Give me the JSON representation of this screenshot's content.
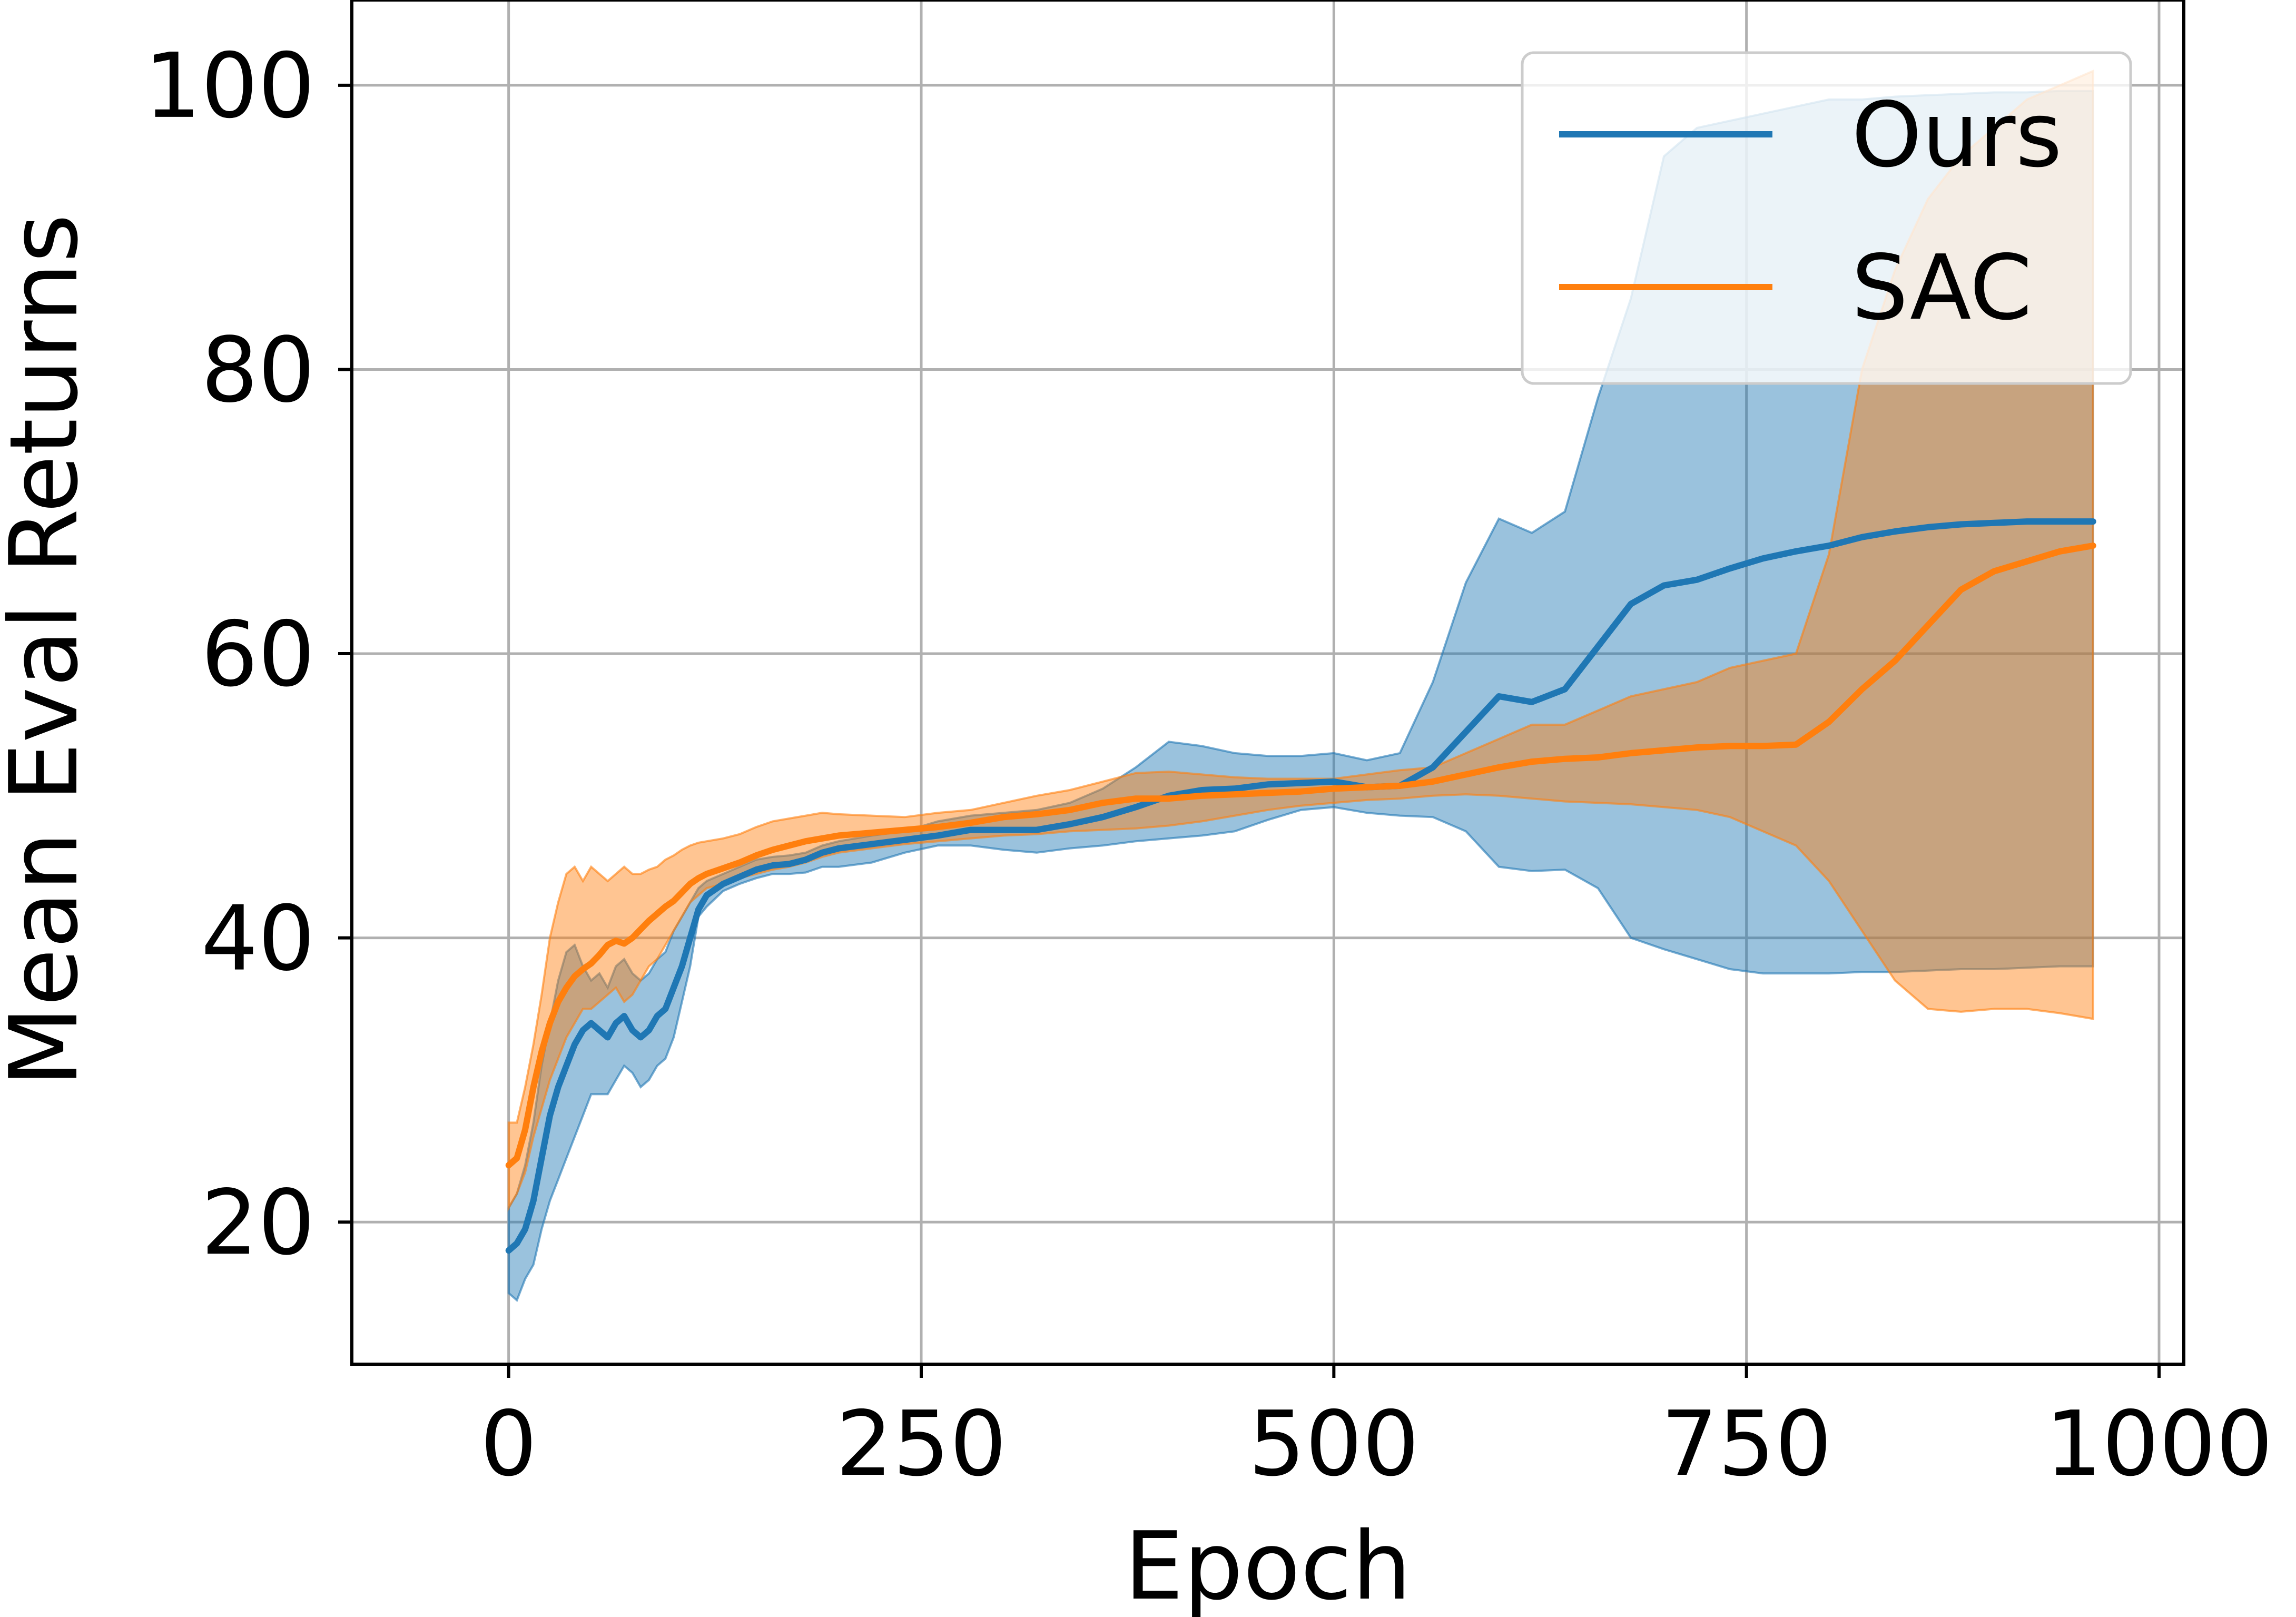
{
  "chart_data": {
    "type": "line",
    "title": "",
    "xlabel": "Epoch",
    "ylabel": "Mean Eval Returns",
    "xlim": [
      -95,
      1015
    ],
    "ylim": [
      10,
      106
    ],
    "xticks": [
      0,
      250,
      500,
      750,
      1000
    ],
    "xtick_labels": [
      "0",
      "250",
      "500",
      "750",
      "1000"
    ],
    "yticks": [
      20,
      40,
      60,
      80,
      100
    ],
    "ytick_labels": [
      "20",
      "40",
      "60",
      "80",
      "100"
    ],
    "grid": true,
    "legend_position": "top-right",
    "series": [
      {
        "name": "Ours",
        "color": "#1f77b4",
        "x": [
          0,
          5,
          10,
          15,
          20,
          25,
          30,
          35,
          40,
          45,
          50,
          55,
          60,
          65,
          70,
          75,
          80,
          85,
          90,
          95,
          100,
          105,
          110,
          115,
          120,
          130,
          140,
          150,
          160,
          170,
          180,
          190,
          200,
          220,
          240,
          260,
          280,
          300,
          320,
          340,
          360,
          380,
          400,
          420,
          440,
          460,
          480,
          500,
          520,
          540,
          560,
          580,
          600,
          620,
          640,
          660,
          680,
          700,
          720,
          740,
          760,
          780,
          800,
          820,
          840,
          860,
          880,
          900,
          920,
          940,
          960
        ],
        "y": [
          18,
          18.5,
          19.5,
          21.5,
          24.5,
          27.5,
          29.5,
          31,
          32.5,
          33.5,
          34,
          33.5,
          33,
          34,
          34.5,
          33.5,
          33,
          33.5,
          34.5,
          35,
          36.5,
          38,
          40,
          42,
          43,
          43.8,
          44.3,
          44.8,
          45.1,
          45.2,
          45.5,
          46,
          46.3,
          46.6,
          46.9,
          47.2,
          47.6,
          47.6,
          47.6,
          48,
          48.5,
          49.2,
          50,
          50.4,
          50.5,
          50.8,
          50.9,
          51,
          50.6,
          50.7,
          52,
          54.5,
          57,
          56.6,
          57.5,
          60.5,
          63.5,
          64.8,
          65.2,
          66,
          66.7,
          67.2,
          67.6,
          68.2,
          68.6,
          68.9,
          69.1,
          69.2,
          69.3,
          69.3,
          69.3
        ],
        "band_upper": [
          21,
          22,
          24,
          27,
          31,
          34,
          37,
          39,
          39.5,
          38,
          37,
          37.5,
          36.5,
          38,
          38.5,
          37.5,
          37,
          37.5,
          38.5,
          39,
          40.5,
          41.5,
          42.5,
          43.5,
          44,
          44.5,
          45,
          45.5,
          45.7,
          45.8,
          46,
          46.5,
          46.8,
          47.2,
          47.5,
          48.2,
          48.6,
          48.8,
          49,
          49.5,
          50.5,
          52,
          53.8,
          53.5,
          53,
          52.8,
          52.8,
          53,
          52.5,
          53,
          58,
          65,
          69.5,
          68.5,
          70,
          78,
          85,
          95,
          97,
          97.5,
          98,
          98.5,
          99,
          99,
          99.2,
          99.3,
          99.4,
          99.5,
          99.5,
          99.6,
          99.6
        ],
        "band_lower": [
          15,
          14.5,
          16,
          17,
          19.5,
          21.5,
          23,
          24.5,
          26,
          27.5,
          29,
          29,
          29,
          30,
          31,
          30.5,
          29.5,
          30,
          31,
          31.5,
          33,
          35.5,
          38,
          41.5,
          42.2,
          43.3,
          43.8,
          44.2,
          44.5,
          44.5,
          44.6,
          45,
          45,
          45.3,
          46,
          46.5,
          46.5,
          46.2,
          46,
          46.3,
          46.5,
          46.8,
          47,
          47.2,
          47.5,
          48.3,
          49,
          49.2,
          48.8,
          48.6,
          48.5,
          47.5,
          45,
          44.7,
          44.8,
          43.5,
          40,
          39.2,
          38.5,
          37.8,
          37.5,
          37.5,
          37.5,
          37.6,
          37.6,
          37.7,
          37.8,
          37.8,
          37.9,
          38,
          38
        ]
      },
      {
        "name": "SAC",
        "color": "#ff7f0e",
        "x": [
          0,
          5,
          10,
          15,
          20,
          25,
          30,
          35,
          40,
          45,
          50,
          55,
          60,
          65,
          70,
          75,
          80,
          85,
          90,
          95,
          100,
          105,
          110,
          115,
          120,
          130,
          140,
          150,
          160,
          170,
          180,
          190,
          200,
          220,
          240,
          260,
          280,
          300,
          320,
          340,
          360,
          380,
          400,
          420,
          440,
          460,
          480,
          500,
          520,
          540,
          560,
          580,
          600,
          620,
          640,
          660,
          680,
          700,
          720,
          740,
          760,
          780,
          800,
          820,
          840,
          860,
          880,
          900,
          920,
          940,
          960
        ],
        "y": [
          24,
          24.5,
          26.5,
          29.5,
          32,
          34,
          35.5,
          36.5,
          37.3,
          37.8,
          38.2,
          38.8,
          39.5,
          39.8,
          39.6,
          40,
          40.6,
          41.2,
          41.7,
          42.2,
          42.6,
          43.2,
          43.8,
          44.2,
          44.5,
          44.9,
          45.3,
          45.8,
          46.2,
          46.5,
          46.8,
          47,
          47.2,
          47.4,
          47.6,
          47.8,
          48.1,
          48.5,
          48.7,
          49,
          49.5,
          49.8,
          49.8,
          50,
          50.1,
          50.2,
          50.3,
          50.5,
          50.6,
          50.7,
          51,
          51.5,
          52,
          52.4,
          52.6,
          52.7,
          53,
          53.2,
          53.4,
          53.5,
          53.5,
          53.6,
          55.2,
          57.5,
          59.5,
          62,
          64.5,
          65.8,
          66.5,
          67.2,
          67.6
        ],
        "band_upper": [
          27,
          27,
          29.5,
          32.5,
          36,
          40,
          42.5,
          44.5,
          45,
          44,
          45,
          44.5,
          44,
          44.5,
          45,
          44.5,
          44.5,
          44.8,
          45,
          45.5,
          45.8,
          46.2,
          46.5,
          46.7,
          46.8,
          47,
          47.3,
          47.8,
          48.2,
          48.4,
          48.6,
          48.8,
          48.7,
          48.6,
          48.5,
          48.8,
          49,
          49.5,
          50,
          50.4,
          51,
          51.6,
          51.7,
          51.5,
          51.3,
          51.2,
          51.2,
          51.2,
          51.5,
          51.8,
          52,
          53,
          54,
          55,
          55,
          56,
          57,
          57.5,
          58,
          59,
          59.5,
          60,
          67,
          80,
          87,
          92,
          95,
          97,
          99,
          100,
          101
        ],
        "band_lower": [
          21,
          22,
          23.5,
          26,
          28,
          30,
          31.5,
          33,
          34,
          35,
          35,
          35.5,
          36,
          36.5,
          35.5,
          36,
          37,
          38,
          38.5,
          39.5,
          40.5,
          41.5,
          42.5,
          43,
          43.5,
          43.8,
          44.2,
          44.5,
          44.8,
          45,
          45.3,
          45.7,
          46,
          46.3,
          46.6,
          46.8,
          47,
          47.2,
          47.3,
          47.5,
          47.6,
          47.7,
          47.9,
          48.2,
          48.6,
          49,
          49.3,
          49.5,
          49.7,
          49.8,
          50,
          50.1,
          50,
          49.8,
          49.6,
          49.5,
          49.4,
          49.2,
          49,
          48.5,
          47.5,
          46.5,
          44,
          40.5,
          37,
          35,
          34.8,
          35,
          35,
          34.7,
          34.3
        ]
      }
    ]
  }
}
